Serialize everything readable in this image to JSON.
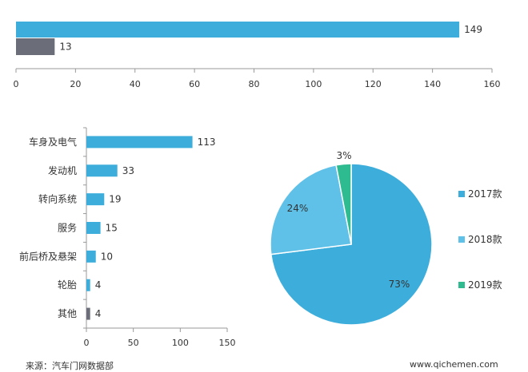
{
  "chart_data": [
    {
      "type": "bar",
      "orientation": "horizontal",
      "series": [
        {
          "values": [
            149
          ],
          "color": "#3DAEDB"
        },
        {
          "values": [
            13
          ],
          "color": "#6B6E78"
        }
      ],
      "data_labels": [
        "149",
        "13"
      ],
      "xlim": [
        0,
        160
      ],
      "xticks": [
        0,
        20,
        40,
        60,
        80,
        100,
        120,
        140,
        160
      ],
      "grid": false
    },
    {
      "type": "bar",
      "orientation": "horizontal",
      "categories": [
        "车身及电气",
        "发动机",
        "转向系统",
        "服务",
        "前后桥及悬架",
        "轮胎",
        "其他"
      ],
      "values": [
        113,
        33,
        19,
        15,
        10,
        4,
        4
      ],
      "colors": [
        "#3DAEDB",
        "#3DAEDB",
        "#3DAEDB",
        "#3DAEDB",
        "#3DAEDB",
        "#3DAEDB",
        "#6B6E78"
      ],
      "xlim": [
        0,
        150
      ],
      "xticks": [
        0,
        50,
        100,
        150
      ],
      "grid": false
    },
    {
      "type": "pie",
      "slices": [
        {
          "label": "2017款",
          "percent_label": "73%",
          "value": 73,
          "color": "#3DAEDB"
        },
        {
          "label": "2018款",
          "percent_label": "24%",
          "value": 24,
          "color": "#5FC1E8"
        },
        {
          "label": "2019款",
          "percent_label": "3%",
          "value": 3,
          "color": "#2DBB8F"
        }
      ],
      "legend_position": "right"
    }
  ],
  "footer": {
    "source": "来源：汽车门网数据部",
    "site": "www.qichemen.com"
  }
}
